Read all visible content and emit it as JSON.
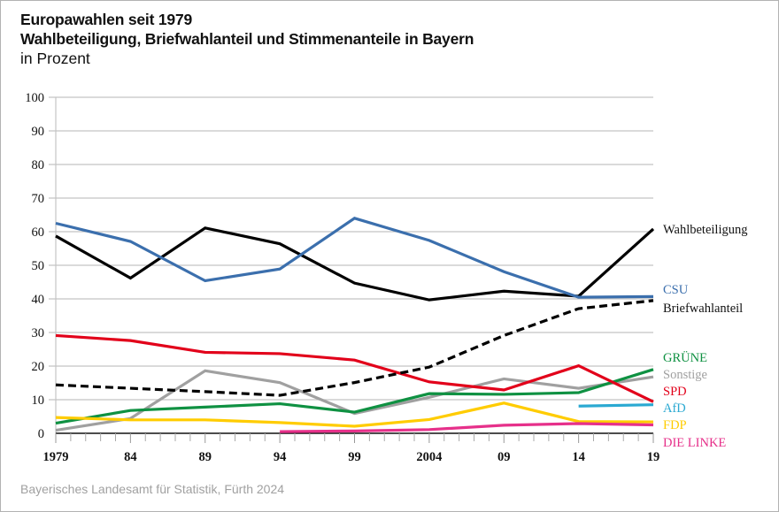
{
  "chart_data": {
    "type": "line",
    "title": "Europawahlen seit 1979",
    "subtitle": "Wahlbeteiligung, Briefwahlanteil und Stimmenanteile in Bayern",
    "ylabel": "in Prozent",
    "xlabel": "",
    "source": "Bayerisches Landesamt für Statistik, Fürth 2024",
    "ylim": [
      0,
      100
    ],
    "yticks": [
      0,
      10,
      20,
      30,
      40,
      50,
      60,
      70,
      80,
      90,
      100
    ],
    "grid": true,
    "x": [
      1979,
      1984,
      1989,
      1994,
      1999,
      2004,
      2009,
      2014,
      2019
    ],
    "x_tick_labels": [
      "1979",
      "84",
      "89",
      "94",
      "99",
      "2004",
      "09",
      "14",
      "19"
    ],
    "legend_placement": "right (direct labels at line ends)",
    "series": [
      {
        "name": "Wahlbeteiligung",
        "color": "#000000",
        "dashed": false,
        "values": [
          58.7,
          46.2,
          61.1,
          56.4,
          44.7,
          39.7,
          42.3,
          40.8,
          60.8
        ]
      },
      {
        "name": "CSU",
        "color": "#3b6fad",
        "dashed": false,
        "values": [
          62.5,
          57.1,
          45.4,
          48.9,
          64.0,
          57.4,
          48.1,
          40.5,
          40.7
        ]
      },
      {
        "name": "Briefwahlanteil",
        "color": "#000000",
        "dashed": true,
        "values": [
          14.4,
          13.4,
          12.4,
          11.3,
          15.1,
          19.7,
          29.1,
          37.1,
          39.5
        ]
      },
      {
        "name": "GRÜNE",
        "color": "#0f9142",
        "dashed": false,
        "values": [
          3.0,
          6.8,
          7.8,
          8.8,
          6.3,
          11.8,
          11.6,
          12.1,
          19.0
        ]
      },
      {
        "name": "Sonstige",
        "color": "#a0a0a0",
        "dashed": false,
        "values": [
          0.9,
          4.4,
          18.6,
          15.1,
          5.9,
          10.7,
          16.2,
          13.4,
          16.8
        ]
      },
      {
        "name": "SPD",
        "color": "#e2001a",
        "dashed": false,
        "values": [
          29.1,
          27.6,
          24.1,
          23.7,
          21.8,
          15.3,
          12.9,
          20.1,
          9.4
        ]
      },
      {
        "name": "AfD",
        "color": "#2aa9d2",
        "dashed": false,
        "values": [
          null,
          null,
          null,
          null,
          null,
          null,
          null,
          8.1,
          8.5
        ]
      },
      {
        "name": "FDP",
        "color": "#ffcc00",
        "dashed": false,
        "values": [
          4.7,
          4.0,
          4.0,
          3.2,
          2.1,
          4.1,
          9.0,
          3.5,
          3.4
        ]
      },
      {
        "name": "DIE LINKE",
        "color": "#e6308a",
        "dashed": false,
        "values": [
          null,
          null,
          null,
          0.5,
          0.7,
          1.1,
          2.4,
          2.9,
          2.5
        ]
      }
    ]
  }
}
